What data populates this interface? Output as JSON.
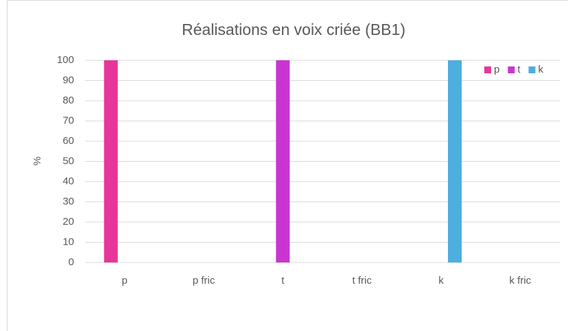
{
  "chart_data": {
    "type": "bar",
    "title": "Réalisations en voix criée (BB1)",
    "y_label": "%",
    "categories": [
      "p",
      "p fric",
      "t",
      "t fric",
      "k",
      "k fric"
    ],
    "series": [
      {
        "name": "p",
        "color": "#e8359a",
        "values": [
          100,
          0,
          0,
          0,
          0,
          0
        ]
      },
      {
        "name": "t",
        "color": "#c935d0",
        "values": [
          0,
          0,
          100,
          0,
          0,
          0
        ]
      },
      {
        "name": "k",
        "color": "#4eaee0",
        "values": [
          0,
          0,
          0,
          0,
          100,
          0
        ]
      }
    ],
    "ylim": [
      0,
      100
    ],
    "yticks": [
      0,
      10,
      20,
      30,
      40,
      50,
      60,
      70,
      80,
      90,
      100
    ],
    "grid": true,
    "legend": "top-right"
  }
}
